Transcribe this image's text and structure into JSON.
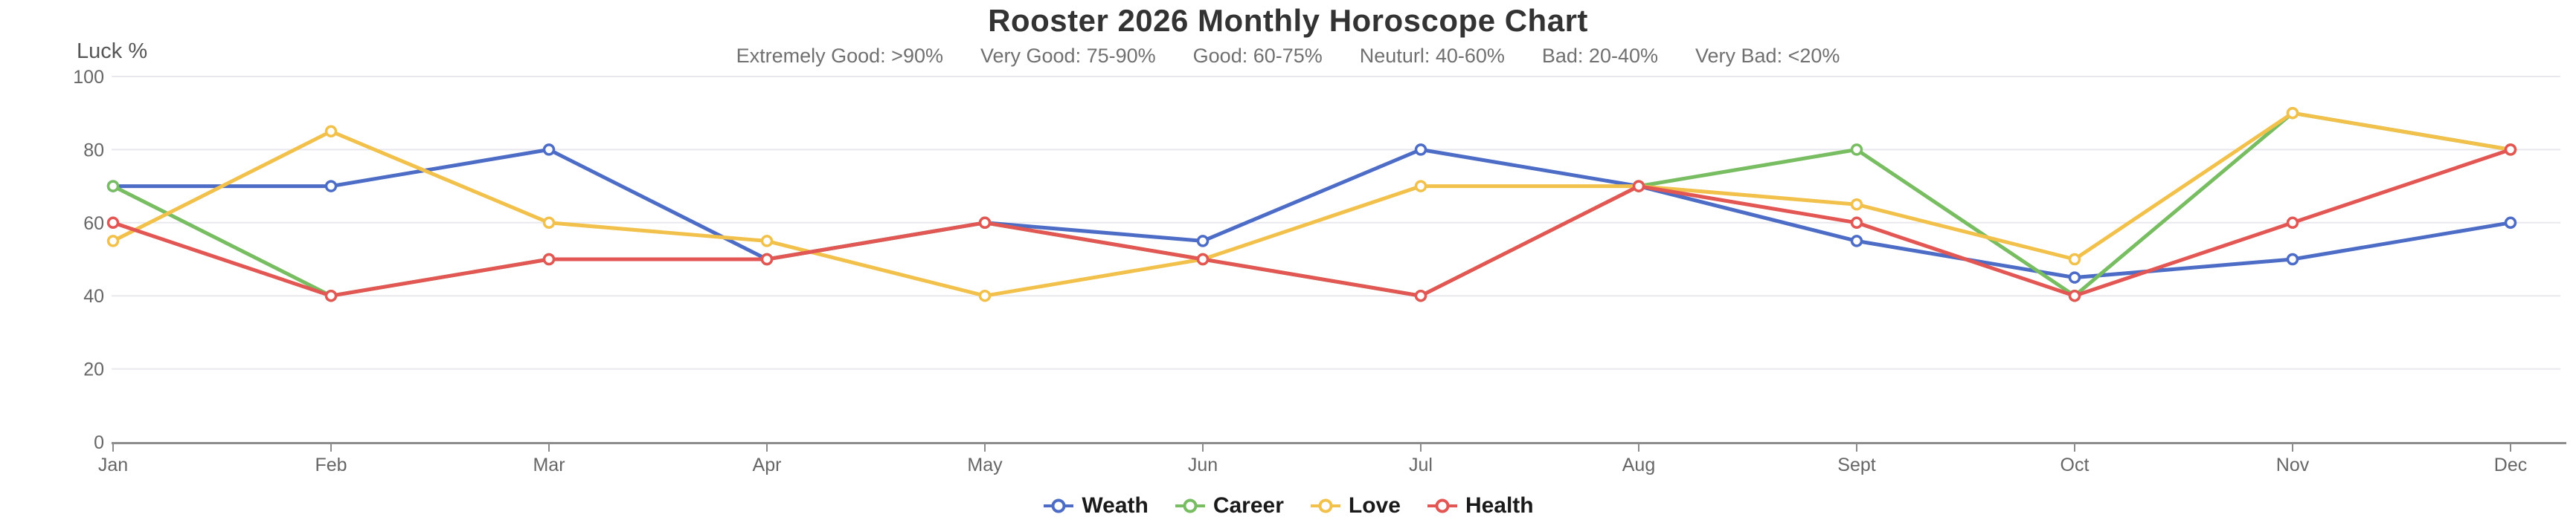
{
  "header": {
    "title": "Rooster 2026 Monthly Horoscope Chart",
    "subtitle_items": [
      "Extremely Good: >90%",
      "Very Good: 75-90%",
      "Good: 60-75%",
      "Neuturl: 40-60%",
      "Bad: 20-40%",
      "Very Bad: <20%"
    ]
  },
  "chart_data": {
    "type": "line",
    "title": "Rooster 2026 Monthly Horoscope Chart",
    "ylabel": "Luck %",
    "xlabel": "",
    "ylim": [
      0,
      100
    ],
    "yticks": [
      0,
      20,
      40,
      60,
      80,
      100
    ],
    "grid": true,
    "legend_position": "bottom",
    "marker": "open-circle",
    "categories": [
      "Jan",
      "Feb",
      "Mar",
      "Apr",
      "May",
      "Jun",
      "Jul",
      "Aug",
      "Sept",
      "Oct",
      "Nov",
      "Dec"
    ],
    "series": [
      {
        "name": "Weath",
        "color": "#4C6CC6",
        "values": [
          70,
          70,
          80,
          50,
          60,
          55,
          80,
          70,
          55,
          45,
          50,
          60
        ]
      },
      {
        "name": "Career",
        "color": "#79BD63",
        "values": [
          70,
          40,
          50,
          50,
          60,
          50,
          40,
          70,
          80,
          40,
          90,
          80
        ]
      },
      {
        "name": "Love",
        "color": "#F2C14B",
        "values": [
          55,
          85,
          60,
          55,
          40,
          50,
          70,
          70,
          65,
          50,
          90,
          80
        ]
      },
      {
        "name": "Health",
        "color": "#E25654",
        "values": [
          60,
          40,
          50,
          50,
          60,
          50,
          40,
          70,
          60,
          40,
          60,
          80
        ]
      }
    ]
  },
  "colors": {
    "grid": "#E8E8EE",
    "axis": "#8C8C8C",
    "tick_label": "#666666",
    "axis_title": "#555555",
    "title": "#333333",
    "subtitle": "#707070",
    "legend_text": "#1A1A1A",
    "background": "#FFFFFF"
  }
}
